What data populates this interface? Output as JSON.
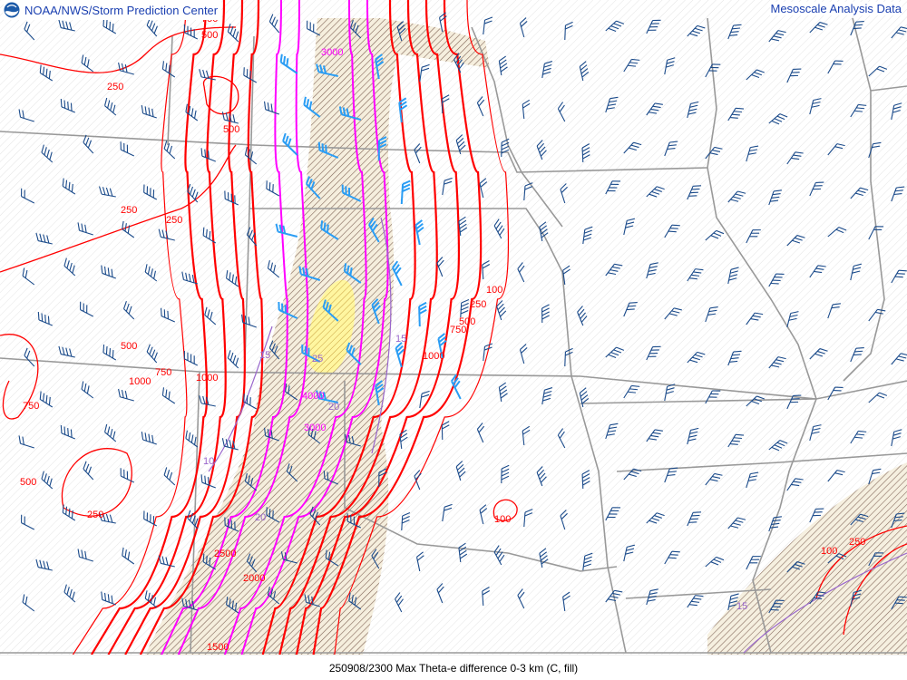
{
  "header": {
    "title": "NOAA/NWS/Storm Prediction Center",
    "product": "Mesoscale Analysis Data",
    "logo_icon": "noaa-logo-icon"
  },
  "footer": {
    "caption": "250908/2300 Max Theta-e difference 0-3 km (C, fill)"
  },
  "colors": {
    "cape_contour": "#ff0000",
    "high_cape_contour": "#ff00ff",
    "theta_contour": "#9966cc",
    "wind_barb": "#1a4a8a",
    "strong_wind_barb": "#2a9df4",
    "borders": "#999999",
    "fill_hatch": "#6b4a3a",
    "fill_high": "#ffee66"
  },
  "contour_labels": [
    "750",
    "500",
    "250",
    "500",
    "250",
    "250",
    "500",
    "750",
    "1000",
    "1000",
    "750",
    "500",
    "250",
    "3000",
    "100",
    "250",
    "500",
    "750",
    "1000",
    "15",
    "25",
    "4000",
    "20",
    "3000",
    "15",
    "10",
    "20",
    "2500",
    "2000",
    "1500",
    "100",
    "100",
    "250",
    "15"
  ]
}
